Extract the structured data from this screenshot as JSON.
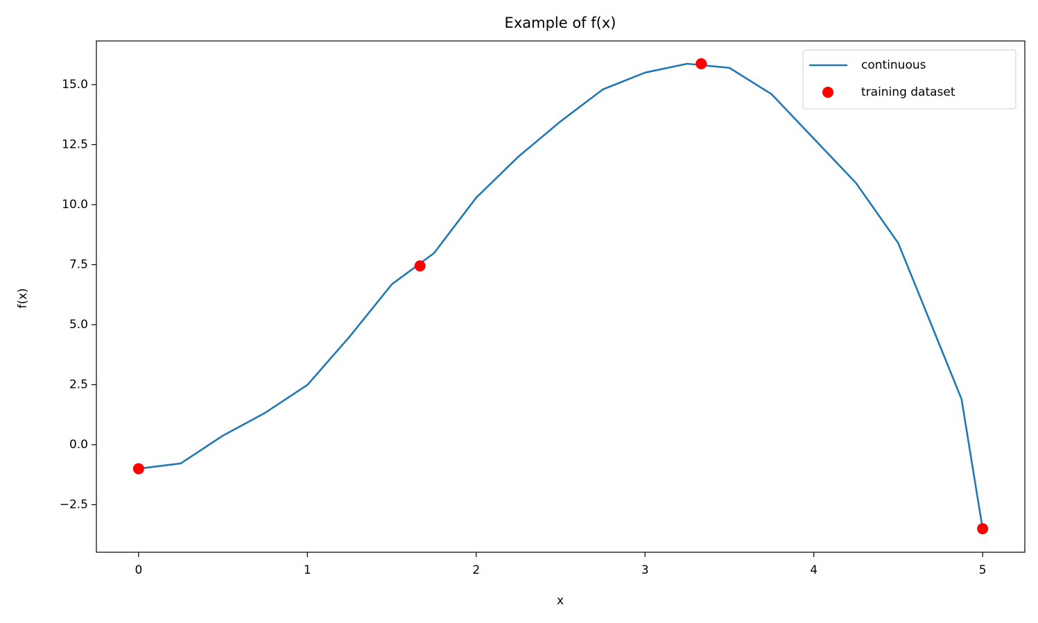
{
  "chart_data": {
    "type": "line",
    "title": "Example of f(x)",
    "xlabel": "x",
    "ylabel": "f(x)",
    "series": [
      {
        "name": "continuous",
        "color": "#1f77b4",
        "kind": "line",
        "x": [
          0,
          0.25,
          0.5,
          0.75,
          1,
          1.25,
          1.5,
          1.75,
          2,
          2.25,
          2.5,
          2.75,
          3,
          3.25,
          3.5,
          3.75,
          4,
          4.25,
          4.5,
          4.75,
          4.875,
          5
        ],
        "values": [
          -1,
          -0.78,
          0.38,
          1.33,
          2.49,
          4.5,
          6.68,
          7.98,
          10.29,
          12.0,
          13.47,
          14.8,
          15.5,
          15.87,
          15.7,
          14.6,
          12.75,
          10.9,
          8.4,
          4.07,
          1.9,
          -3.5
        ]
      },
      {
        "name": "training dataset",
        "color": "#ff0000",
        "kind": "points",
        "x": [
          0,
          1.667,
          3.333,
          5
        ],
        "values": [
          -1,
          7.45,
          15.87,
          -3.5
        ]
      }
    ],
    "xlim": [
      -0.25,
      5.25
    ],
    "ylim": [
      -4.48,
      16.82
    ],
    "xticks": [
      0,
      1,
      2,
      3,
      4,
      5
    ],
    "yticks": [
      {
        "value": -2.5,
        "label": "−2.5"
      },
      {
        "value": 0,
        "label": "0.0"
      },
      {
        "value": 2.5,
        "label": "2.5"
      },
      {
        "value": 5,
        "label": "5.0"
      },
      {
        "value": 7.5,
        "label": "7.5"
      },
      {
        "value": 10,
        "label": "10.0"
      },
      {
        "value": 12.5,
        "label": "12.5"
      },
      {
        "value": 15,
        "label": "15.0"
      }
    ],
    "legend": "upper right",
    "grid": false
  }
}
